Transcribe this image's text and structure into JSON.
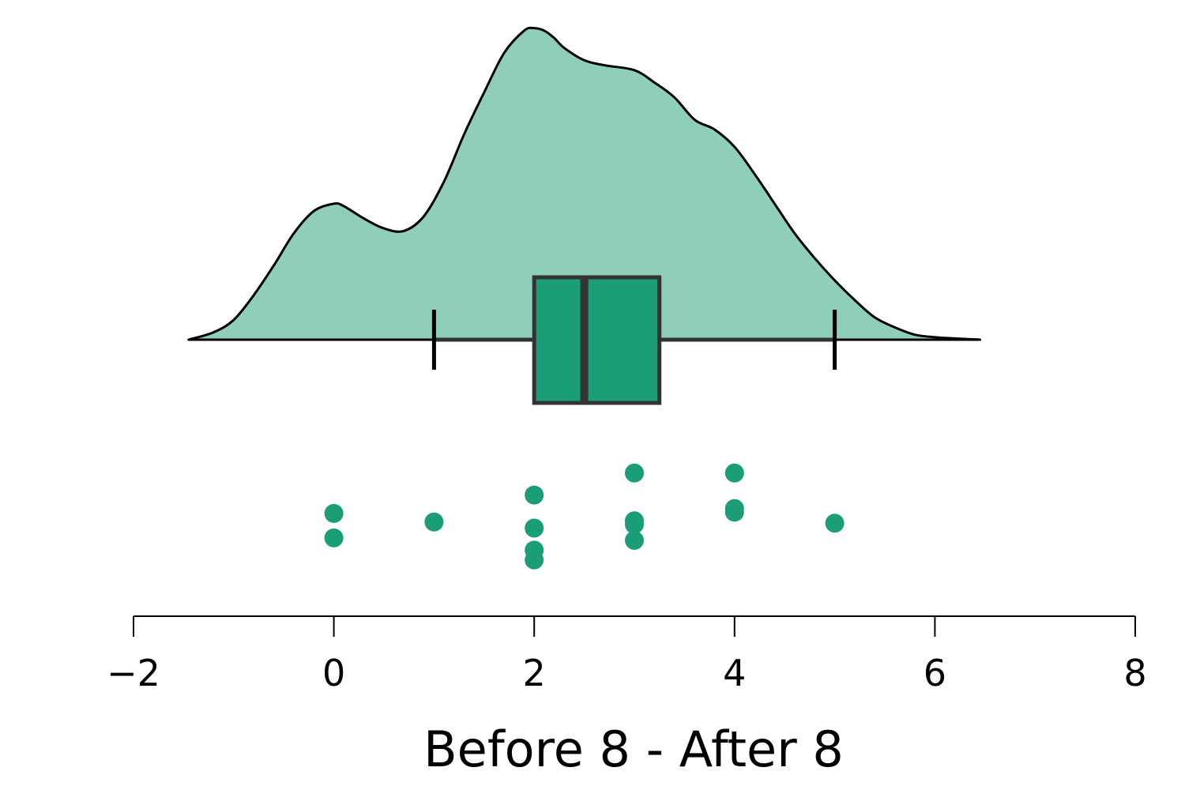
{
  "chart_data": {
    "type": "raincloud",
    "title": "",
    "xlabel": "Before 8 - After 8",
    "ylabel": "",
    "xlim": [
      -2,
      8
    ],
    "x_ticks": [
      -2,
      0,
      2,
      4,
      6,
      8
    ],
    "x_tick_labels": [
      "−2",
      "0",
      "2",
      "4",
      "6",
      "8"
    ],
    "grid": false,
    "legend": "none",
    "colors": {
      "density_fill": "#8fceba",
      "box_fill": "#1b9e77",
      "box_stroke": "#333333",
      "points": "#1b9e77",
      "axis": "#000000"
    },
    "density": {
      "x": [
        -1.45,
        -1.2,
        -1.0,
        -0.8,
        -0.6,
        -0.4,
        -0.2,
        0.0,
        0.1,
        0.3,
        0.5,
        0.7,
        0.9,
        1.1,
        1.3,
        1.5,
        1.7,
        1.9,
        2.0,
        2.1,
        2.2,
        2.3,
        2.5,
        2.7,
        3.0,
        3.2,
        3.4,
        3.6,
        3.8,
        4.0,
        4.2,
        4.4,
        4.6,
        4.8,
        5.0,
        5.2,
        5.4,
        5.6,
        5.8,
        6.0,
        6.2,
        6.45
      ],
      "y": [
        0.0,
        0.03,
        0.08,
        0.18,
        0.3,
        0.43,
        0.52,
        0.55,
        0.54,
        0.49,
        0.45,
        0.44,
        0.5,
        0.64,
        0.83,
        1.0,
        1.16,
        1.25,
        1.26,
        1.25,
        1.22,
        1.18,
        1.13,
        1.11,
        1.09,
        1.04,
        0.98,
        0.89,
        0.85,
        0.78,
        0.67,
        0.55,
        0.43,
        0.33,
        0.24,
        0.16,
        0.09,
        0.05,
        0.02,
        0.01,
        0.005,
        0.0
      ]
    },
    "box": {
      "whisker_low": 1,
      "q1": 2,
      "median": 2.5,
      "q3": 3.25,
      "whisker_high": 5
    },
    "points": [
      {
        "x": 0,
        "jitter": 0.38
      },
      {
        "x": 0,
        "jitter": 0.58
      },
      {
        "x": 1,
        "jitter": 0.45
      },
      {
        "x": 2,
        "jitter": 0.23
      },
      {
        "x": 2,
        "jitter": 0.5
      },
      {
        "x": 2,
        "jitter": 0.68
      },
      {
        "x": 2,
        "jitter": 0.76
      },
      {
        "x": 3,
        "jitter": 0.05
      },
      {
        "x": 3,
        "jitter": 0.44
      },
      {
        "x": 3,
        "jitter": 0.47
      },
      {
        "x": 3,
        "jitter": 0.6
      },
      {
        "x": 4,
        "jitter": 0.05
      },
      {
        "x": 4,
        "jitter": 0.34
      },
      {
        "x": 4,
        "jitter": 0.37
      },
      {
        "x": 5,
        "jitter": 0.46
      }
    ]
  }
}
